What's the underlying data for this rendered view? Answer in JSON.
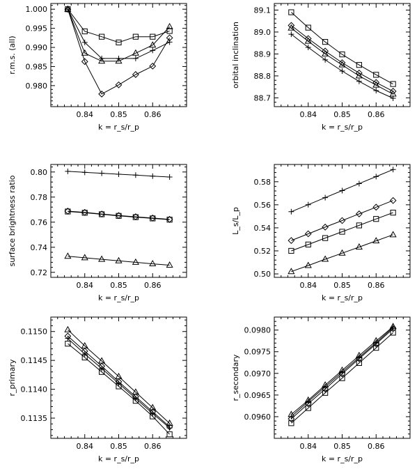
{
  "chart_data": [
    {
      "type": "line",
      "xlabel": "k = r_s/r_p",
      "ylabel": "r.m.s. (all)",
      "xlim": [
        0.83,
        0.87
      ],
      "ylim": [
        0.9745,
        1.0015
      ],
      "xticks": [
        0.84,
        0.85,
        0.86
      ],
      "yticks": [
        0.98,
        0.985,
        0.99,
        0.995,
        1.0
      ],
      "ytick_labels": [
        "0.980",
        "0.985",
        "0.990",
        "0.995",
        "1.000"
      ],
      "grid": false,
      "x": [
        0.835,
        0.84,
        0.845,
        0.85,
        0.855,
        0.86,
        0.865
      ],
      "series": [
        {
          "marker": "square",
          "values": [
            1.0,
            0.9942,
            0.9928,
            0.9913,
            0.9928,
            0.9928,
            0.9943
          ]
        },
        {
          "marker": "plus",
          "values": [
            1.0,
            0.9913,
            0.9871,
            0.9871,
            0.9871,
            0.9892,
            0.9914
          ]
        },
        {
          "marker": "triangle",
          "values": [
            1.0,
            0.9885,
            0.9864,
            0.9864,
            0.9885,
            0.9906,
            0.9954
          ]
        },
        {
          "marker": "diamond",
          "values": [
            1.0,
            0.9863,
            0.9778,
            0.9802,
            0.9829,
            0.9851,
            0.9925
          ]
        }
      ]
    },
    {
      "type": "line",
      "xlabel": "k = r_s/r_p",
      "ylabel": "orbital inclination",
      "xlim": [
        0.83,
        0.87
      ],
      "ylim": [
        88.66,
        89.13
      ],
      "xticks": [
        0.84,
        0.85,
        0.86
      ],
      "yticks": [
        88.7,
        88.8,
        88.9,
        89.0,
        89.1
      ],
      "ytick_labels": [
        "88.7",
        "88.8",
        "88.9",
        "89.0",
        "89.1"
      ],
      "grid": false,
      "x": [
        0.835,
        0.84,
        0.845,
        0.85,
        0.855,
        0.86,
        0.865
      ],
      "series": [
        {
          "marker": "square",
          "values": [
            89.09,
            89.02,
            88.955,
            88.898,
            88.85,
            88.805,
            88.763
          ]
        },
        {
          "marker": "diamond",
          "values": [
            89.03,
            88.97,
            88.913,
            88.86,
            88.813,
            88.77,
            88.73
          ]
        },
        {
          "marker": "triangle",
          "values": [
            89.018,
            88.958,
            88.9,
            88.85,
            88.8,
            88.758,
            88.717
          ]
        },
        {
          "marker": "plus",
          "values": [
            88.99,
            88.93,
            88.873,
            88.822,
            88.775,
            88.733,
            88.698
          ]
        }
      ]
    },
    {
      "type": "line",
      "xlabel": "k = r_s/r_p",
      "ylabel": "surface brightness ratio",
      "xlim": [
        0.83,
        0.87
      ],
      "ylim": [
        0.716,
        0.806
      ],
      "xticks": [
        0.84,
        0.85,
        0.86
      ],
      "yticks": [
        0.72,
        0.74,
        0.76,
        0.78,
        0.8
      ],
      "ytick_labels": [
        "0.72",
        "0.74",
        "0.76",
        "0.78",
        "0.80"
      ],
      "grid": false,
      "x": [
        0.835,
        0.84,
        0.845,
        0.85,
        0.855,
        0.86,
        0.865
      ],
      "series": [
        {
          "marker": "plus",
          "values": [
            0.8005,
            0.7997,
            0.799,
            0.7982,
            0.7975,
            0.7967,
            0.796
          ]
        },
        {
          "marker": "square",
          "values": [
            0.7685,
            0.7675,
            0.7663,
            0.765,
            0.764,
            0.763,
            0.762
          ]
        },
        {
          "marker": "diamond",
          "values": [
            0.7688,
            0.7678,
            0.7665,
            0.7653,
            0.7643,
            0.7633,
            0.7622
          ]
        },
        {
          "marker": "triangle",
          "values": [
            0.7328,
            0.7316,
            0.7304,
            0.7292,
            0.728,
            0.7268,
            0.7257
          ]
        }
      ]
    },
    {
      "type": "line",
      "xlabel": "k = r_s/r_p",
      "ylabel": "L_s/L_p",
      "xlim": [
        0.83,
        0.87
      ],
      "ylim": [
        0.497,
        0.595
      ],
      "xticks": [
        0.84,
        0.85,
        0.86
      ],
      "yticks": [
        0.5,
        0.52,
        0.54,
        0.56,
        0.58
      ],
      "ytick_labels": [
        "0.50",
        "0.52",
        "0.54",
        "0.56",
        "0.58"
      ],
      "grid": false,
      "x": [
        0.835,
        0.84,
        0.845,
        0.85,
        0.855,
        0.86,
        0.865
      ],
      "series": [
        {
          "marker": "plus",
          "values": [
            0.554,
            0.5601,
            0.5662,
            0.5723,
            0.5784,
            0.5845,
            0.5906
          ]
        },
        {
          "marker": "diamond",
          "values": [
            0.529,
            0.5348,
            0.5406,
            0.5463,
            0.5521,
            0.5579,
            0.5637
          ]
        },
        {
          "marker": "square",
          "values": [
            0.52,
            0.5255,
            0.5311,
            0.5366,
            0.5421,
            0.5477,
            0.5532
          ]
        },
        {
          "marker": "triangle",
          "values": [
            0.502,
            0.5073,
            0.5127,
            0.518,
            0.5233,
            0.5287,
            0.534
          ]
        }
      ]
    },
    {
      "type": "line",
      "xlabel": "k = r_s/r_p",
      "ylabel": "r_primary",
      "xlim": [
        0.83,
        0.87
      ],
      "ylim": [
        0.11315,
        0.11525
      ],
      "xticks": [
        0.84,
        0.85,
        0.86
      ],
      "yticks": [
        0.1135,
        0.114,
        0.1145,
        0.115
      ],
      "ytick_labels": [
        "0.1135",
        "0.1140",
        "0.1145",
        "0.1150"
      ],
      "grid": false,
      "x": [
        0.835,
        0.84,
        0.845,
        0.85,
        0.855,
        0.86,
        0.865
      ],
      "series": [
        {
          "marker": "triangle",
          "values": [
            0.11503,
            0.11475,
            0.11449,
            0.11422,
            0.11395,
            0.11368,
            0.11341
          ]
        },
        {
          "marker": "diamond",
          "values": [
            0.11492,
            0.11466,
            0.1144,
            0.11413,
            0.11387,
            0.11361,
            0.11335
          ]
        },
        {
          "marker": "plus",
          "values": [
            0.11488,
            0.11461,
            0.11436,
            0.1141,
            0.11384,
            0.11358,
            0.11333
          ]
        },
        {
          "marker": "square",
          "values": [
            0.11479,
            0.11455,
            0.1143,
            0.11405,
            0.1138,
            0.11353,
            0.11322
          ]
        }
      ]
    },
    {
      "type": "line",
      "xlabel": "k = r_s/r_p",
      "ylabel": "r_secondary",
      "xlim": [
        0.83,
        0.87
      ],
      "ylim": [
        0.0955,
        0.0983
      ],
      "xticks": [
        0.84,
        0.85,
        0.86
      ],
      "yticks": [
        0.096,
        0.0965,
        0.097,
        0.0975,
        0.098
      ],
      "ytick_labels": [
        "0.0960",
        "0.0965",
        "0.0970",
        "0.0975",
        "0.0980"
      ],
      "grid": false,
      "x": [
        0.835,
        0.84,
        0.845,
        0.85,
        0.855,
        0.86,
        0.865
      ],
      "series": [
        {
          "marker": "triangle",
          "values": [
            0.09605,
            0.09638,
            0.09673,
            0.09707,
            0.09741,
            0.09775,
            0.09808
          ]
        },
        {
          "marker": "plus",
          "values": [
            0.096,
            0.09635,
            0.09669,
            0.09703,
            0.09737,
            0.09771,
            0.09806
          ]
        },
        {
          "marker": "diamond",
          "values": [
            0.09595,
            0.0963,
            0.09664,
            0.09699,
            0.09734,
            0.09768,
            0.09803
          ]
        },
        {
          "marker": "square",
          "values": [
            0.09585,
            0.0962,
            0.09655,
            0.09689,
            0.09724,
            0.09759,
            0.09794
          ]
        }
      ]
    }
  ]
}
